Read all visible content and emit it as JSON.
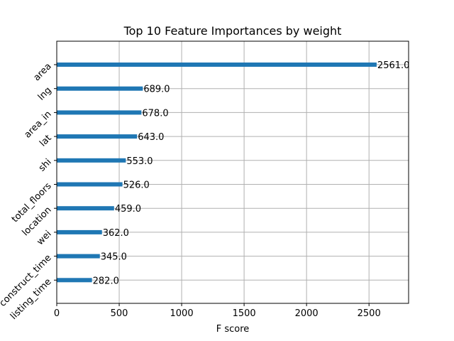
{
  "chart_data": {
    "type": "bar",
    "orientation": "horizontal",
    "title": "Top 10 Feature Importances by weight",
    "xlabel": "F score",
    "ylabel": "",
    "categories": [
      "area",
      "lng",
      "area_in",
      "lat",
      "shi",
      "total_floors",
      "location",
      "wei",
      "construct_time",
      "listing_time"
    ],
    "values": [
      2561,
      689,
      678,
      643,
      553,
      526,
      459,
      362,
      345,
      282
    ],
    "value_labels": [
      "2561.0",
      "689.0",
      "678.0",
      "643.0",
      "553.0",
      "526.0",
      "459.0",
      "362.0",
      "345.0",
      "282.0"
    ],
    "xlim": [
      0,
      2817
    ],
    "xticks": [
      0,
      500,
      1000,
      1500,
      2000,
      2500
    ],
    "xtick_labels": [
      "0",
      "500",
      "1000",
      "1500",
      "2000",
      "2500"
    ],
    "grid": true,
    "colors": {
      "bar": "#1f77b4",
      "grid": "#b0b0b0"
    }
  }
}
